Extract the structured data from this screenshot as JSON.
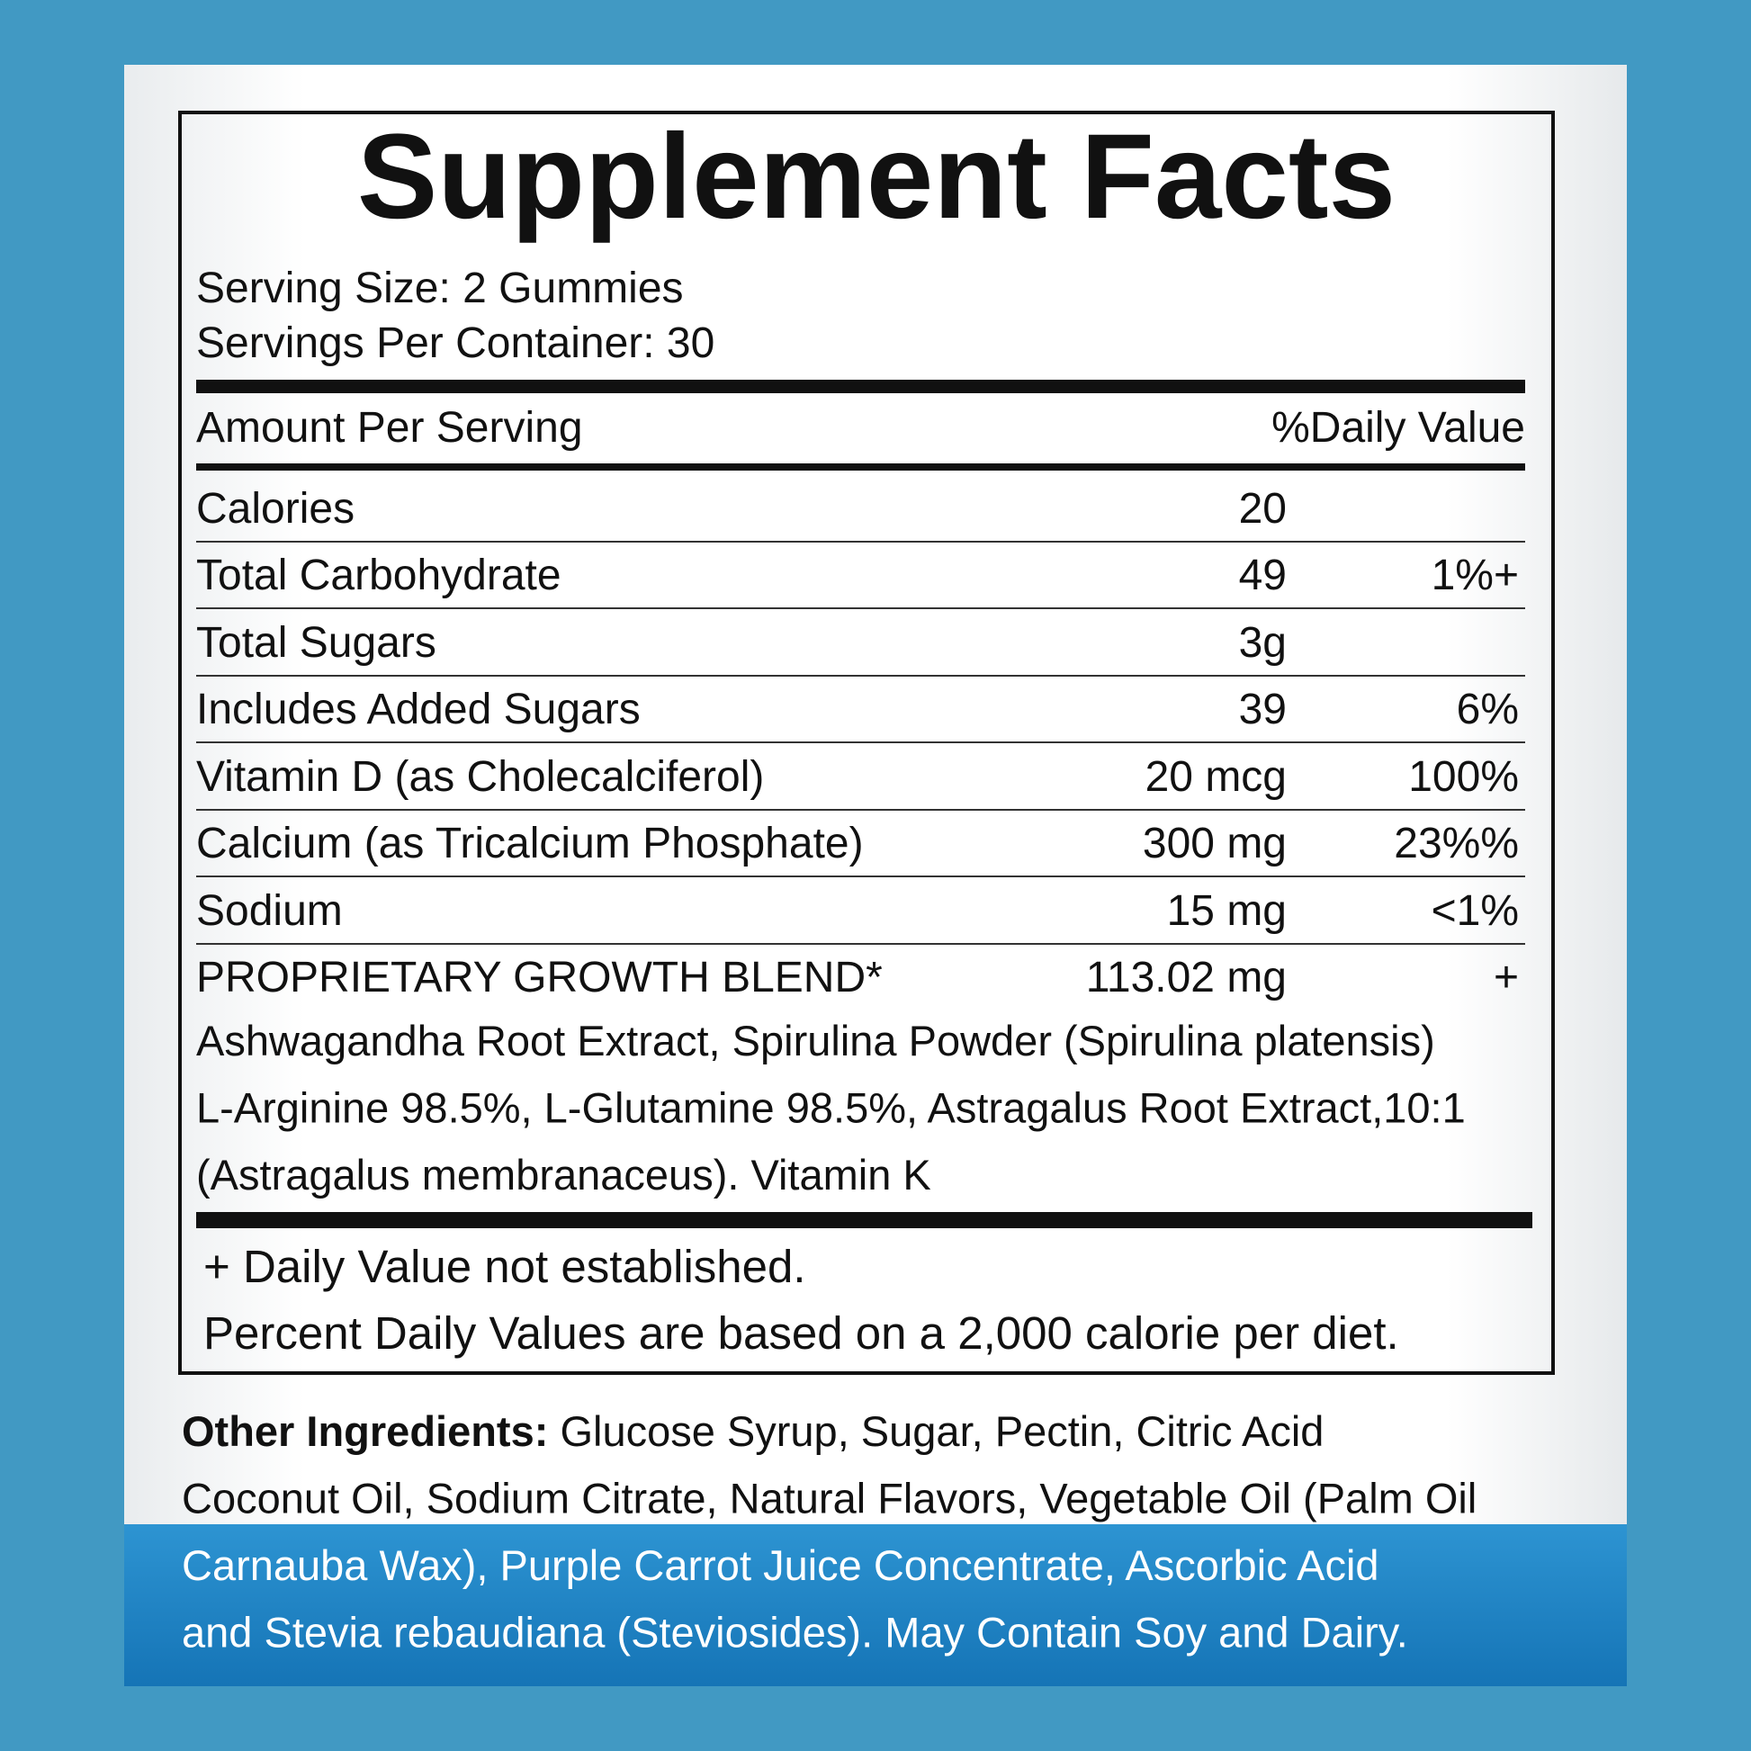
{
  "header": {
    "title": "Supplement Facts",
    "serving_size": "Serving Size: 2 Gummies",
    "servings_per_container": "Servings Per Container: 30"
  },
  "table": {
    "header": [
      "Amount Per Serving",
      "%Daily Value"
    ],
    "rows": [
      {
        "name": "Calories",
        "amount": "20",
        "daily_value": null
      },
      {
        "name": "Total Carbohydrate",
        "amount": "49",
        "daily_value": "1%+"
      },
      {
        "name": "Total Sugars",
        "amount": "3g",
        "daily_value": null
      },
      {
        "name": "Includes Added Sugars",
        "amount": "39",
        "daily_value": "6%"
      },
      {
        "name": "Vitamin D (as Cholecalciferol)",
        "amount": "20 mcg",
        "daily_value": "100%"
      },
      {
        "name": "Calcium (as Tricalcium Phosphate)",
        "amount": "300 mg",
        "daily_value": "23%%"
      },
      {
        "name": "Sodium",
        "amount": "15 mg",
        "daily_value": "<1%"
      },
      {
        "name": "PROPRIETARY GROWTH BLEND*",
        "amount": "113.02 mg",
        "daily_value": "+"
      }
    ],
    "blend_lines": [
      "Ashwagandha Root Extract, Spirulina Powder (Spirulina platensis)",
      "L-Arginine 98.5%, L-Glutamine 98.5%, Astragalus Root Extract,10:1",
      "(Astragalus membranaceus). Vitamin K"
    ]
  },
  "footnotes": [
    "+ Daily Value not established.",
    "Percent Daily Values are based on a 2,000 calorie per diet."
  ],
  "other_ingredients": {
    "label": "Other Ingredients:",
    "lines": [
      "Glucose Syrup, Sugar, Pectin, Citric Acid",
      "Coconut Oil, Sodium Citrate, Natural Flavors, Vegetable Oil (Palm Oil",
      "Carnauba Wax), Purple Carrot Juice Concentrate, Ascorbic Acid",
      "and Stevia rebaudiana (Steviosides). May Contain Soy and Dairy."
    ]
  }
}
